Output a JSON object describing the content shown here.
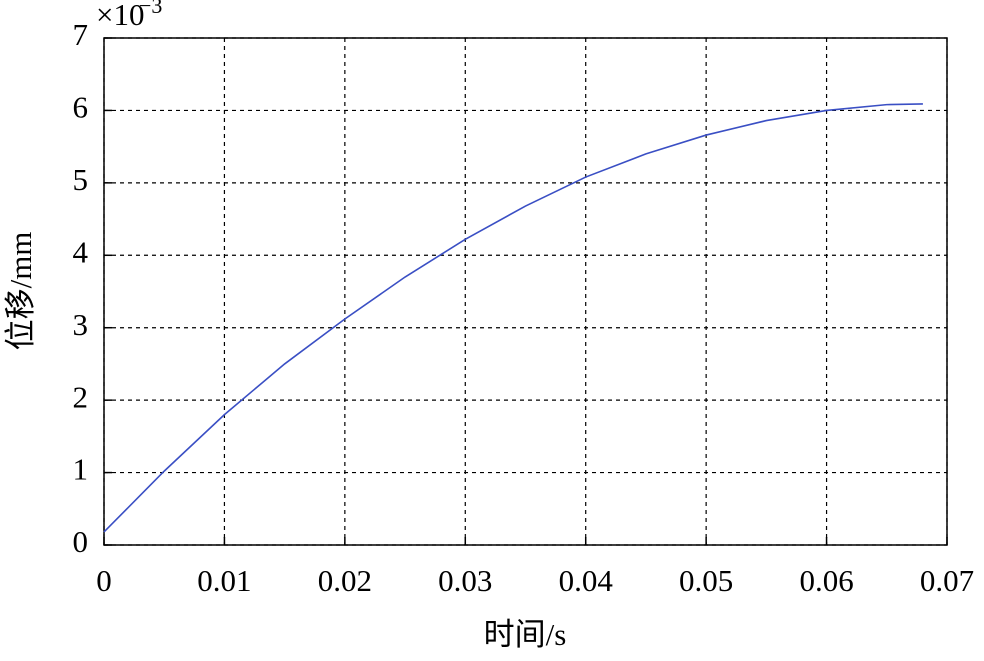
{
  "chart_data": {
    "type": "line",
    "x_label": "时间/s",
    "y_label": "位移/mm",
    "y_scale_label": "×10",
    "y_scale_exponent": "−3",
    "x": [
      0,
      0.005,
      0.01,
      0.015,
      0.02,
      0.025,
      0.03,
      0.035,
      0.04,
      0.045,
      0.05,
      0.055,
      0.06,
      0.065,
      0.068
    ],
    "series": [
      {
        "color": "#3a4fc4",
        "values": [
          0.18,
          1.02,
          1.8,
          2.5,
          3.12,
          3.7,
          4.22,
          4.68,
          5.08,
          5.4,
          5.66,
          5.86,
          6.0,
          6.08,
          6.09
        ]
      }
    ],
    "xlim": [
      0,
      0.07
    ],
    "xticks": [
      0,
      0.01,
      0.02,
      0.03,
      0.04,
      0.05,
      0.06,
      0.07
    ],
    "ylim": [
      0,
      7
    ],
    "yticks": [
      0,
      1,
      2,
      3,
      4,
      5,
      6,
      7
    ],
    "grid": true
  }
}
